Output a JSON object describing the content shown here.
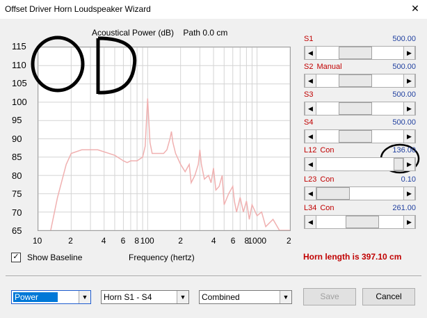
{
  "window": {
    "title": "Offset Driver Horn Loudspeaker Wizard",
    "close": "✕"
  },
  "chart_header": {
    "measure": "Acoustical Power (dB)",
    "path": "Path 0.0 cm"
  },
  "chart_data": {
    "type": "line",
    "title": "Acoustical Power (dB)   Path 0.0 cm",
    "xlabel": "Frequency (hertz)",
    "ylabel": "",
    "x_scale": "log",
    "xlim": [
      10,
      2000
    ],
    "ylim": [
      65,
      115
    ],
    "y_ticks": [
      "115",
      "110",
      "105",
      "100",
      "95",
      "90",
      "85",
      "80",
      "75",
      "70",
      "65"
    ],
    "x_ticks": [
      "10",
      "2",
      "4",
      "6",
      "8",
      "100",
      "2",
      "4",
      "6",
      "8",
      "1000",
      "2"
    ],
    "grid": true,
    "series": [
      {
        "color": "#f0b0b0",
        "points": [
          [
            13,
            65
          ],
          [
            15,
            74
          ],
          [
            18,
            83
          ],
          [
            20,
            86
          ],
          [
            25,
            87
          ],
          [
            35,
            87
          ],
          [
            50,
            85.5
          ],
          [
            60,
            84
          ],
          [
            65,
            83.5
          ],
          [
            70,
            84
          ],
          [
            80,
            84
          ],
          [
            90,
            85
          ],
          [
            95,
            88
          ],
          [
            98,
            96
          ],
          [
            100,
            101
          ],
          [
            102,
            96
          ],
          [
            105,
            89
          ],
          [
            110,
            86
          ],
          [
            120,
            86
          ],
          [
            130,
            86
          ],
          [
            140,
            86
          ],
          [
            150,
            87
          ],
          [
            160,
            90
          ],
          [
            165,
            92
          ],
          [
            170,
            89
          ],
          [
            180,
            86
          ],
          [
            200,
            83
          ],
          [
            220,
            81
          ],
          [
            240,
            83
          ],
          [
            250,
            78
          ],
          [
            270,
            80
          ],
          [
            290,
            83
          ],
          [
            300,
            87
          ],
          [
            310,
            83
          ],
          [
            330,
            79
          ],
          [
            360,
            80
          ],
          [
            380,
            78
          ],
          [
            400,
            82
          ],
          [
            420,
            76
          ],
          [
            450,
            77
          ],
          [
            480,
            80
          ],
          [
            500,
            72
          ],
          [
            550,
            75
          ],
          [
            600,
            77
          ],
          [
            620,
            73
          ],
          [
            650,
            70
          ],
          [
            700,
            74
          ],
          [
            750,
            70
          ],
          [
            800,
            73
          ],
          [
            850,
            68
          ],
          [
            900,
            72
          ],
          [
            1000,
            69
          ],
          [
            1100,
            70
          ],
          [
            1200,
            66
          ],
          [
            1400,
            68
          ],
          [
            1600,
            65
          ],
          [
            2000,
            65
          ]
        ]
      }
    ]
  },
  "sliders": [
    {
      "label": "S1",
      "extra": "",
      "value": "500.00",
      "pos": 0.42
    },
    {
      "label": "S2",
      "extra": "Manual",
      "value": "500.00",
      "pos": 0.42
    },
    {
      "label": "S3",
      "extra": "",
      "value": "500.00",
      "pos": 0.42
    },
    {
      "label": "S4",
      "extra": "",
      "value": "500.00",
      "pos": 0.42
    },
    {
      "label": "L12",
      "extra": "Con",
      "value": "136.00",
      "pos": 0.9
    },
    {
      "label": "L23",
      "extra": "Con",
      "value": "0.10",
      "pos": 0.0
    },
    {
      "label": "L34",
      "extra": "Con",
      "value": "261.00",
      "pos": 0.55
    }
  ],
  "show_baseline": {
    "label": "Show Baseline",
    "checked": "✓"
  },
  "horn_length": "Horn length is 397.10 cm",
  "combos": {
    "mode": "Power",
    "range": "Horn S1 - S4",
    "view": "Combined"
  },
  "buttons": {
    "save": "Save",
    "cancel": "Cancel"
  },
  "icons": {
    "arrow_left": "◀",
    "arrow_right": "▶",
    "dropdown": "▼"
  }
}
